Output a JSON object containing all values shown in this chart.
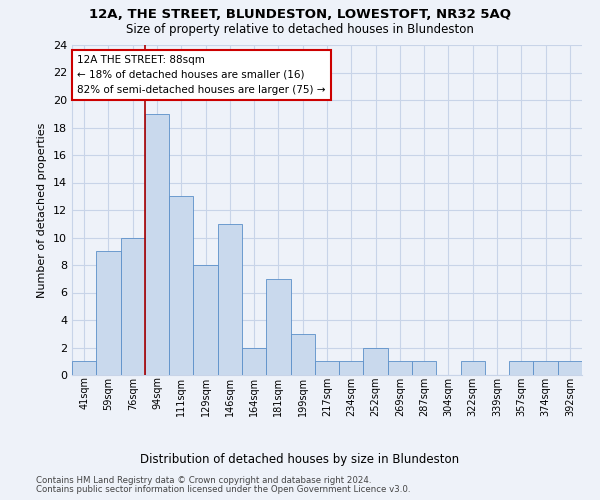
{
  "title1": "12A, THE STREET, BLUNDESTON, LOWESTOFT, NR32 5AQ",
  "title2": "Size of property relative to detached houses in Blundeston",
  "xlabel": "Distribution of detached houses by size in Blundeston",
  "ylabel": "Number of detached properties",
  "categories": [
    "41sqm",
    "59sqm",
    "76sqm",
    "94sqm",
    "111sqm",
    "129sqm",
    "146sqm",
    "164sqm",
    "181sqm",
    "199sqm",
    "217sqm",
    "234sqm",
    "252sqm",
    "269sqm",
    "287sqm",
    "304sqm",
    "322sqm",
    "339sqm",
    "357sqm",
    "374sqm",
    "392sqm"
  ],
  "values": [
    1,
    9,
    10,
    19,
    13,
    8,
    11,
    2,
    7,
    3,
    1,
    1,
    2,
    1,
    1,
    0,
    1,
    0,
    1,
    1,
    1
  ],
  "bar_color": "#c9d9ed",
  "bar_edge_color": "#5b8fc9",
  "grid_color": "#c8d4e8",
  "subject_vline_x": 3.5,
  "subject_label": "12A THE STREET: 88sqm",
  "annotation_line1": "← 18% of detached houses are smaller (16)",
  "annotation_line2": "82% of semi-detached houses are larger (75) →",
  "annotation_box_color": "#ffffff",
  "annotation_box_edge": "#cc0000",
  "subject_vline_color": "#aa0000",
  "ylim": [
    0,
    24
  ],
  "yticks": [
    0,
    2,
    4,
    6,
    8,
    10,
    12,
    14,
    16,
    18,
    20,
    22,
    24
  ],
  "footer1": "Contains HM Land Registry data © Crown copyright and database right 2024.",
  "footer2": "Contains public sector information licensed under the Open Government Licence v3.0.",
  "background_color": "#eef2f9"
}
